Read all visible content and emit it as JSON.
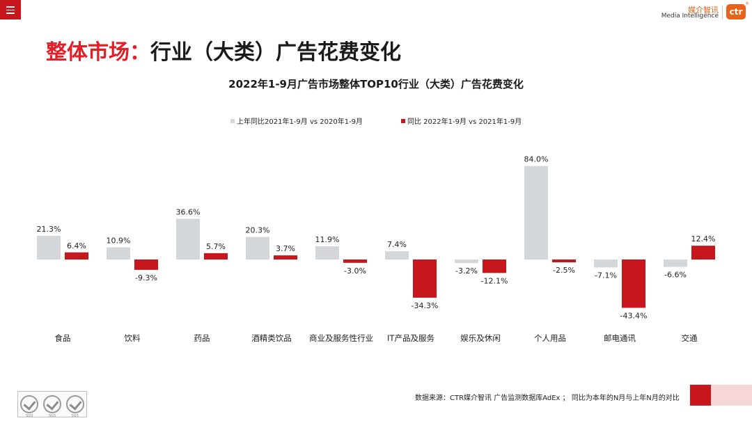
{
  "header": {
    "menu_icon": "hamburger-menu-icon",
    "logo_cn": "媒介智讯",
    "logo_en": "Media Intelligence",
    "logo_mark": "ctr",
    "logo_registered": "®"
  },
  "page_title": {
    "accent": "整体市场：",
    "main": "行业（大类）广告花费变化"
  },
  "colors": {
    "accent_red": "#e41e26",
    "series1": "#d3d7da",
    "series2": "#c8161d",
    "brand_orange": "#e8641a"
  },
  "chart_data": {
    "type": "bar",
    "title": "2022年1-9月广告市场整体TOP10行业（大类）广告花费变化",
    "categories": [
      "食品",
      "饮料",
      "药品",
      "酒精类饮品",
      "商业及服务性行业",
      "IT产品及服务",
      "娱乐及休闲",
      "个人用品",
      "邮电通讯",
      "交通"
    ],
    "series": [
      {
        "name": "上年同比2021年1-9月  vs  2020年1-9月",
        "values": [
          21.3,
          10.9,
          36.6,
          20.3,
          11.9,
          7.4,
          -3.2,
          84.0,
          -7.1,
          -6.6
        ],
        "labels": [
          "21.3%",
          "10.9%",
          "36.6%",
          "20.3%",
          "11.9%",
          "7.4%",
          "-3.2%",
          "84.0%",
          "-7.1%",
          "-6.6%"
        ]
      },
      {
        "name": "同比 2022年1-9月  vs  2021年1-9月",
        "values": [
          6.4,
          -9.3,
          5.7,
          3.7,
          -3.0,
          -34.3,
          -12.1,
          -2.5,
          -43.4,
          12.4
        ],
        "labels": [
          "6.4%",
          "-9.3%",
          "5.7%",
          "3.7%",
          "-3.0%",
          "-34.3%",
          "-12.1%",
          "-2.5%",
          "-43.4%",
          "12.4%"
        ]
      }
    ],
    "xlabel": "",
    "ylabel": "",
    "ylim": [
      -50,
      90
    ],
    "grid": false,
    "legend_position": "top-center"
  },
  "footer": {
    "source": "数据来源：CTR媒介智讯 广告监测数据库AdEx ； 同比为本年的N月与上年N月的对比",
    "badge_label": "SGS",
    "badge_icon": "certification-check-icon"
  }
}
